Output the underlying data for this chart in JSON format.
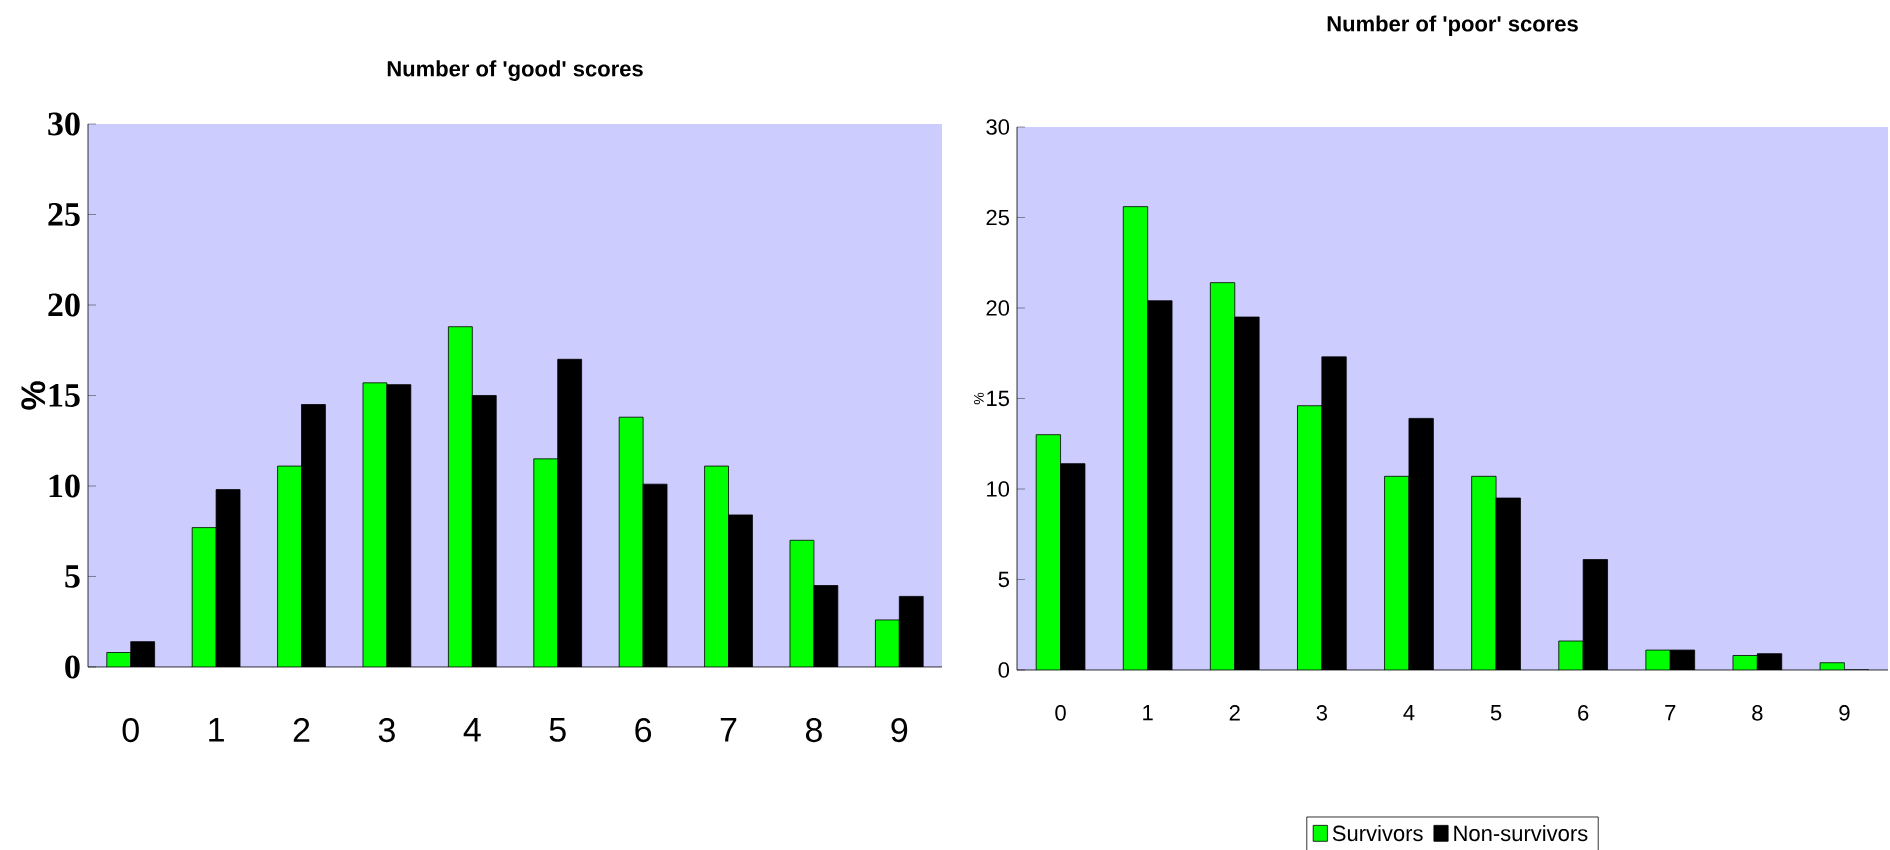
{
  "chart_data": [
    {
      "type": "bar",
      "title": "Number of 'good' scores",
      "ylabel": "%",
      "categories": [
        "0",
        "1",
        "2",
        "3",
        "4",
        "5",
        "6",
        "7",
        "8",
        "9"
      ],
      "ylim": [
        0,
        30
      ],
      "yticks": [
        0,
        5,
        10,
        15,
        20,
        25,
        30
      ],
      "series": [
        {
          "color": "#00ff00",
          "values": [
            0.8,
            7.7,
            11.1,
            15.7,
            18.8,
            11.5,
            13.8,
            11.1,
            7.0,
            2.6
          ]
        },
        {
          "color": "#000000",
          "values": [
            1.4,
            9.8,
            14.5,
            15.6,
            15.0,
            17.0,
            10.1,
            8.4,
            4.5,
            3.9
          ]
        }
      ]
    },
    {
      "type": "bar",
      "title": "Number of 'poor' scores",
      "ylabel": "%",
      "categories": [
        "0",
        "1",
        "2",
        "3",
        "4",
        "5",
        "6",
        "7",
        "8",
        "9"
      ],
      "ylim": [
        0,
        30
      ],
      "yticks": [
        0,
        5,
        10,
        15,
        20,
        25,
        30
      ],
      "legend": "bottom",
      "series": [
        {
          "name": "Survivors",
          "color": "#00ff00",
          "values": [
            13.0,
            25.6,
            21.4,
            14.6,
            10.7,
            10.7,
            1.6,
            1.1,
            0.8,
            0.4
          ]
        },
        {
          "name": "Non-survivors",
          "color": "#000000",
          "values": [
            11.4,
            20.4,
            19.5,
            17.3,
            13.9,
            9.5,
            6.1,
            1.1,
            0.9,
            0
          ]
        }
      ]
    }
  ]
}
